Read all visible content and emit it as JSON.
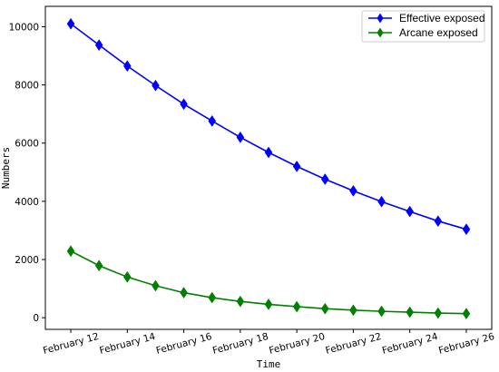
{
  "chart_data": {
    "type": "line",
    "title": "",
    "xlabel": "Time",
    "ylabel": "Numbers",
    "x_tick_labels": [
      "February 12",
      "February 14",
      "February 16",
      "February 18",
      "February 20",
      "February 22",
      "February 24",
      "February 26"
    ],
    "x_tick_positions": [
      12,
      14,
      16,
      18,
      20,
      22,
      24,
      26
    ],
    "x": [
      12,
      13,
      14,
      15,
      16,
      17,
      18,
      19,
      20,
      21,
      22,
      23,
      24,
      25,
      26
    ],
    "xlim": [
      11.1,
      26.9
    ],
    "y_ticks": [
      0,
      2000,
      4000,
      6000,
      8000,
      10000
    ],
    "ylim": [
      -400,
      10700
    ],
    "grid": false,
    "legend_position": "top-right",
    "series": [
      {
        "name": "Effective exposed",
        "color": "#0000ff",
        "marker": "diamond",
        "values": [
          10100,
          9370,
          8650,
          7980,
          7340,
          6760,
          6200,
          5680,
          5200,
          4760,
          4360,
          3990,
          3650,
          3320,
          3040
        ]
      },
      {
        "name": "Arcane exposed",
        "color": "#008000",
        "marker": "diamond",
        "values": [
          2290,
          1790,
          1400,
          1100,
          860,
          690,
          560,
          460,
          380,
          310,
          260,
          220,
          190,
          160,
          140
        ]
      }
    ]
  }
}
